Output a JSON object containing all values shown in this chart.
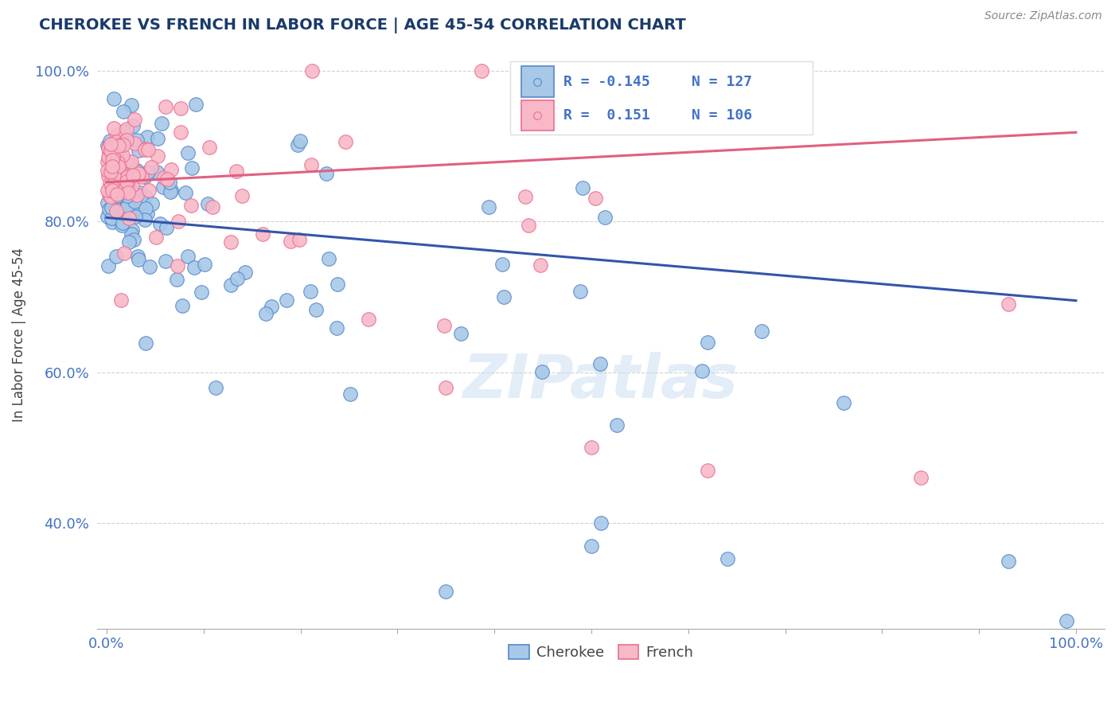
{
  "title": "CHEROKEE VS FRENCH IN LABOR FORCE | AGE 45-54 CORRELATION CHART",
  "source": "Source: ZipAtlas.com",
  "ylabel": "In Labor Force | Age 45-54",
  "cherokee_R": -0.145,
  "cherokee_N": 127,
  "french_R": 0.151,
  "french_N": 106,
  "cherokee_fill": "#A8C8E8",
  "cherokee_edge": "#5588CC",
  "french_fill": "#F8B8C8",
  "french_edge": "#E87090",
  "cherokee_line": "#3355AA",
  "french_line": "#E06080",
  "legend_labels": [
    "Cherokee",
    "French"
  ],
  "background_color": "#FFFFFF",
  "watermark": "ZIPatlas",
  "title_color": "#1A3A6A",
  "axis_label_color": "#4472C4",
  "ylabel_color": "#444444",
  "cherokee_trend_x0": 0.0,
  "cherokee_trend_y0": 0.805,
  "cherokee_trend_x1": 1.0,
  "cherokee_trend_y1": 0.695,
  "french_trend_x0": 0.0,
  "french_trend_y0": 0.852,
  "french_trend_x1": 1.0,
  "french_trend_y1": 0.918,
  "xlim": [
    -0.01,
    1.03
  ],
  "ylim": [
    0.26,
    1.04
  ],
  "yticks": [
    0.4,
    0.6,
    0.8,
    1.0
  ],
  "ytick_labels": [
    "40.0%",
    "60.0%",
    "80.0%",
    "100.0%"
  ]
}
